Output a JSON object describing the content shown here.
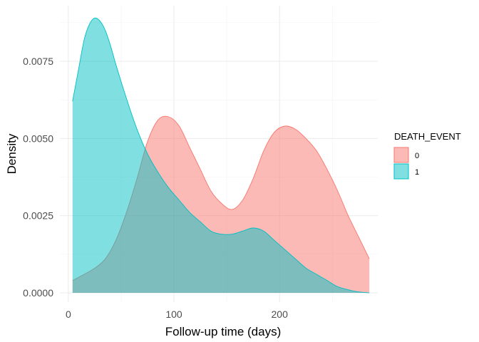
{
  "chart_data": {
    "type": "area",
    "title": "",
    "xlabel": "Follow-up time (days)",
    "ylabel": "Density",
    "xlim": [
      -8,
      293
    ],
    "ylim": [
      -0.0003,
      0.0093
    ],
    "x_ticks": [
      0,
      100,
      200
    ],
    "x_tick_labels": [
      "0",
      "100",
      "200"
    ],
    "y_ticks": [
      0,
      0.0025,
      0.005,
      0.0075
    ],
    "y_tick_labels": [
      "0.0000",
      "0.0025",
      "0.0050",
      "0.0075"
    ],
    "grid": true,
    "legend": {
      "title": "DEATH_EVENT",
      "position": "right"
    },
    "series": [
      {
        "name": "0",
        "fill": "#F8766D",
        "x": [
          4,
          15,
          25,
          35,
          45,
          55,
          65,
          75,
          85,
          95,
          105,
          115,
          125,
          135,
          145,
          155,
          165,
          175,
          185,
          195,
          205,
          215,
          225,
          235,
          245,
          255,
          265,
          275,
          285
        ],
        "y": [
          0.0004,
          0.0006,
          0.0008,
          0.0011,
          0.0017,
          0.0026,
          0.0037,
          0.0049,
          0.0056,
          0.0057,
          0.0054,
          0.0047,
          0.004,
          0.0033,
          0.0029,
          0.0027,
          0.003,
          0.0037,
          0.0046,
          0.0052,
          0.0054,
          0.0053,
          0.005,
          0.0046,
          0.004,
          0.0033,
          0.0025,
          0.0018,
          0.0011
        ]
      },
      {
        "name": "1",
        "fill": "#00BFC4",
        "x": [
          4,
          10,
          15,
          20,
          25,
          30,
          35,
          40,
          45,
          55,
          65,
          75,
          85,
          95,
          105,
          115,
          125,
          135,
          145,
          155,
          165,
          175,
          185,
          195,
          205,
          215,
          225,
          235,
          245,
          255,
          265,
          275,
          285
        ],
        "y": [
          0.0062,
          0.0073,
          0.0082,
          0.0087,
          0.0089,
          0.0088,
          0.0085,
          0.008,
          0.0074,
          0.0063,
          0.0053,
          0.0045,
          0.0039,
          0.0034,
          0.003,
          0.0026,
          0.0023,
          0.002,
          0.0019,
          0.0019,
          0.002,
          0.0021,
          0.002,
          0.0017,
          0.0014,
          0.0011,
          0.0008,
          0.0006,
          0.0004,
          0.0002,
          0.0001,
          3e-05,
          0.0
        ]
      }
    ]
  }
}
